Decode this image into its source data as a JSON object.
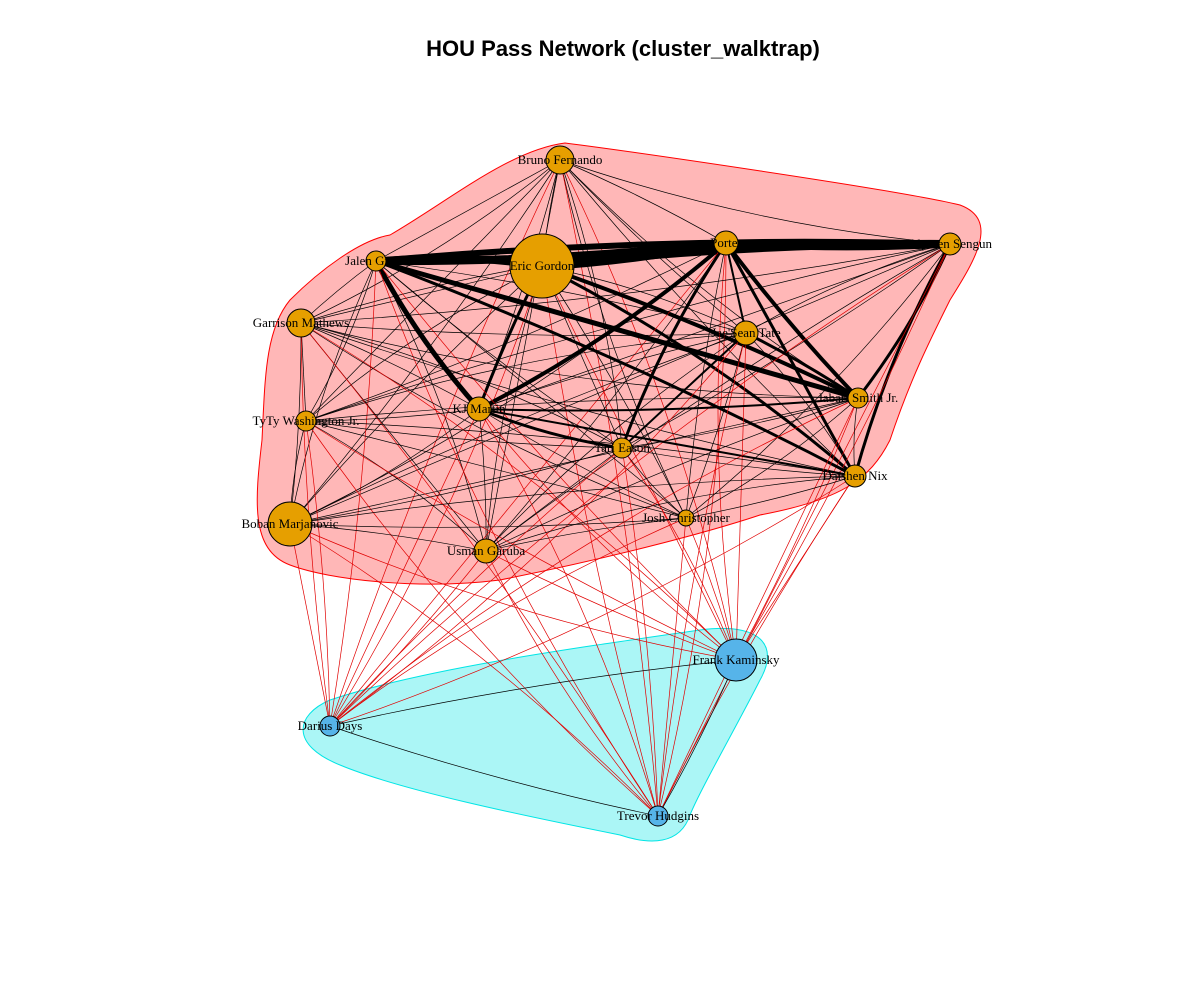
{
  "title": "HOU Pass Network (cluster_walktrap)",
  "colors": {
    "cluster1_fill": "#ffb3b3",
    "cluster1_stroke": "#ff0000",
    "cluster2_fill": "#a6f5f5",
    "cluster2_stroke": "#00e5e5",
    "node_orange": "#e69f00",
    "node_blue": "#56b4e9",
    "edge_within": "#000000",
    "edge_between": "#e00000"
  },
  "nodes": [
    {
      "id": "bruno",
      "label": "Bruno Fernando",
      "group": 1
    },
    {
      "id": "eric",
      "label": "Eric Gordon",
      "group": 1
    },
    {
      "id": "porter",
      "label": "Porter",
      "group": 1
    },
    {
      "id": "sengun",
      "label": "Alperen Sengun",
      "group": 1
    },
    {
      "id": "jalen",
      "label": "Jalen Green",
      "group": 1
    },
    {
      "id": "garrison",
      "label": "Garrison Mathews",
      "group": 1
    },
    {
      "id": "tate",
      "label": "Jae'Sean Tate",
      "group": 1
    },
    {
      "id": "martin",
      "label": "KJ Martin",
      "group": 1
    },
    {
      "id": "smith",
      "label": "Jabari Smith Jr.",
      "group": 1
    },
    {
      "id": "tyty",
      "label": "TyTy Washington Jr.",
      "group": 1
    },
    {
      "id": "eason",
      "label": "Tari Eason",
      "group": 1
    },
    {
      "id": "nix",
      "label": "Daishen Nix",
      "group": 1
    },
    {
      "id": "boban",
      "label": "Boban Marjanovic",
      "group": 1
    },
    {
      "id": "josh",
      "label": "Josh Christopher",
      "group": 1
    },
    {
      "id": "usman",
      "label": "Usman Garuba",
      "group": 1
    },
    {
      "id": "frank",
      "label": "Frank Kaminsky",
      "group": 2
    },
    {
      "id": "darius",
      "label": "Darius Days",
      "group": 2
    },
    {
      "id": "trevor",
      "label": "Trevor Hudgins",
      "group": 2
    }
  ]
}
